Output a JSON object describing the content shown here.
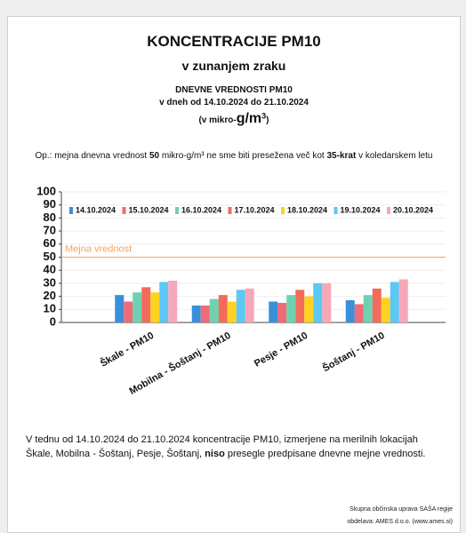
{
  "header": {
    "title": "KONCENTRACIJE PM10",
    "subtitle": "v zunanjem zraku",
    "line1": "DNEVNE VREDNOSTI PM10",
    "line2": "v dneh od 14.10.2024 do 21.10.2024",
    "units": {
      "prefix": "(v mikro-",
      "main": "g/m",
      "sup": "3",
      "suffix": ")"
    }
  },
  "note": {
    "parts": [
      {
        "text": "Op.: mejna dnevna vrednost ",
        "bold": false
      },
      {
        "text": "50",
        "bold": true
      },
      {
        "text": " mikro-g/m³ ne sme biti presežena več kot ",
        "bold": false
      },
      {
        "text": "35-krat",
        "bold": true
      },
      {
        "text": " v koledarskem letu",
        "bold": false
      }
    ]
  },
  "chart_data": {
    "type": "bar",
    "categories": [
      "Škale - PM10",
      "Mobilna - Šoštanj - PM10",
      "Pesje - PM10",
      "Šoštanj - PM10"
    ],
    "series": [
      {
        "name": "14.10.2024",
        "color": "#3a8fd9",
        "values": [
          21,
          13,
          16,
          17
        ]
      },
      {
        "name": "15.10.2024",
        "color": "#f06a78",
        "values": [
          16,
          13,
          15,
          14
        ]
      },
      {
        "name": "16.10.2024",
        "color": "#6fd1b0",
        "values": [
          23,
          18,
          21,
          21
        ]
      },
      {
        "name": "17.10.2024",
        "color": "#f26b5b",
        "values": [
          27,
          21,
          25,
          26
        ]
      },
      {
        "name": "18.10.2024",
        "color": "#ffd21f",
        "values": [
          23,
          16,
          20,
          19
        ]
      },
      {
        "name": "19.10.2024",
        "color": "#5bc8f5",
        "values": [
          31,
          25,
          30,
          31
        ]
      },
      {
        "name": "20.10.2024",
        "color": "#f7a8b8",
        "values": [
          32,
          26,
          30,
          33
        ]
      }
    ],
    "ylim": [
      0,
      100
    ],
    "yticks": [
      0,
      10,
      20,
      30,
      40,
      50,
      60,
      70,
      80,
      90,
      100
    ],
    "grid": true,
    "legend": "top",
    "limit": {
      "value": 50,
      "label": "Mejna vrednost",
      "color": "#f4a460"
    }
  },
  "summary": {
    "parts": [
      {
        "text": "V tednu od 14.10.2024 do 21.10.2024 koncentracije PM10, izmerjene na merilnih lokacijah Škale, Mobilna - Šoštanj, Pesje, Šoštanj, ",
        "bold": false
      },
      {
        "text": "niso",
        "bold": true
      },
      {
        "text": " presegle predpisane dnevne mejne vrednosti.",
        "bold": false
      }
    ]
  },
  "footer": {
    "line1": "Skupna občinska uprava SAŠA regije",
    "line2": "obdelava: AMES d.o.o. (www.ames.si)"
  }
}
